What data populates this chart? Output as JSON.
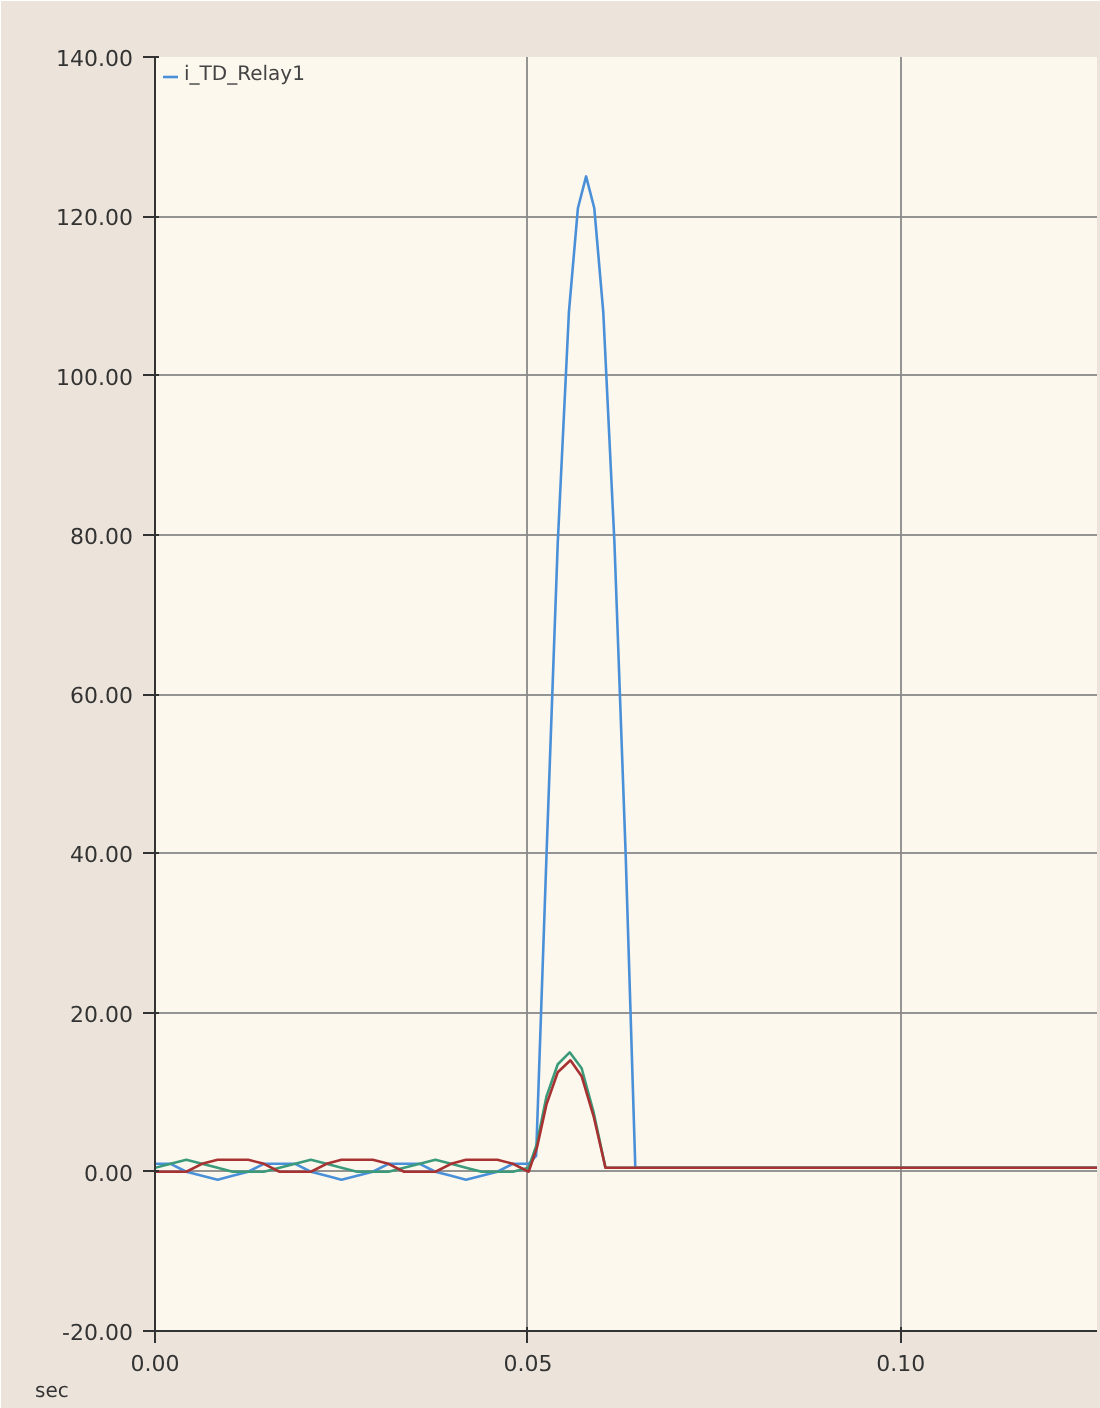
{
  "chart_data": {
    "type": "line",
    "xlabel": "sec",
    "xlim": [
      0,
      0.1263
    ],
    "xticks": [
      {
        "value": 0,
        "label": "0.00"
      },
      {
        "value": 0.05,
        "label": "0.05"
      },
      {
        "value": 0.1,
        "label": "0.10"
      }
    ],
    "ylim": [
      -20,
      140
    ],
    "yticks": [
      {
        "value": -20,
        "label": "-20.00"
      },
      {
        "value": 0,
        "label": "0.00"
      },
      {
        "value": 20,
        "label": "20.00"
      },
      {
        "value": 40,
        "label": "40.00"
      },
      {
        "value": 60,
        "label": "60.00"
      },
      {
        "value": 80,
        "label": "80.00"
      },
      {
        "value": 100,
        "label": "100.00"
      },
      {
        "value": 120,
        "label": "120.00"
      },
      {
        "value": 140,
        "label": "140.00"
      }
    ],
    "grid": true,
    "legend": "top left",
    "line_style": "solid",
    "marker": "none",
    "series": [
      {
        "name": "i_TD_Relay1",
        "color": "#4a90d9",
        "x": [
          0,
          0.0021,
          0.0042,
          0.0063,
          0.0084,
          0.0104,
          0.0125,
          0.0146,
          0.0167,
          0.0188,
          0.0209,
          0.023,
          0.025,
          0.0271,
          0.0292,
          0.0313,
          0.0334,
          0.0355,
          0.0376,
          0.0397,
          0.0417,
          0.0438,
          0.0459,
          0.048,
          0.0501,
          0.0511,
          0.0525,
          0.054,
          0.0555,
          0.0567,
          0.0578,
          0.0589,
          0.0601,
          0.0616,
          0.0631,
          0.0644,
          0.1263
        ],
        "values": [
          1,
          1,
          0,
          -0.5,
          -1,
          -0.5,
          0,
          1,
          1,
          1,
          0,
          -0.5,
          -1,
          -0.5,
          0,
          1,
          1,
          1,
          0,
          -0.5,
          -1,
          -0.5,
          0,
          1,
          1,
          2,
          40,
          79,
          108,
          121,
          125,
          121,
          108,
          79,
          40,
          0.5,
          0.5
        ]
      },
      {
        "color": "#3a9a7a",
        "x": [
          0,
          0.0021,
          0.0042,
          0.0063,
          0.0084,
          0.0104,
          0.0125,
          0.0146,
          0.0167,
          0.0188,
          0.0209,
          0.023,
          0.025,
          0.0271,
          0.0292,
          0.0313,
          0.0334,
          0.0355,
          0.0376,
          0.0397,
          0.0417,
          0.0438,
          0.0459,
          0.048,
          0.0501,
          0.0512,
          0.0525,
          0.054,
          0.0556,
          0.0572,
          0.0588,
          0.0604,
          0.1263
        ],
        "values": [
          0.5,
          1,
          1.5,
          1,
          0.5,
          0,
          0,
          0,
          0.5,
          1,
          1.5,
          1,
          0.5,
          0,
          0,
          0,
          0.5,
          1,
          1.5,
          1,
          0.5,
          0,
          0,
          0,
          0.5,
          3.5,
          9.5,
          13.5,
          15,
          13,
          7.5,
          0.5,
          0.5
        ]
      },
      {
        "color": "#a83232",
        "x": [
          0,
          0.0021,
          0.0042,
          0.0063,
          0.0084,
          0.0104,
          0.0125,
          0.0146,
          0.0167,
          0.0188,
          0.0209,
          0.023,
          0.025,
          0.0271,
          0.0292,
          0.0313,
          0.0334,
          0.0355,
          0.0376,
          0.0397,
          0.0417,
          0.0438,
          0.0459,
          0.048,
          0.0501,
          0.0512,
          0.0525,
          0.054,
          0.0557,
          0.0572,
          0.0588,
          0.0604,
          0.1263
        ],
        "values": [
          0,
          0,
          0,
          1,
          1.5,
          1.5,
          1.5,
          1,
          0,
          0,
          0,
          1,
          1.5,
          1.5,
          1.5,
          1,
          0,
          0,
          0,
          1,
          1.5,
          1.5,
          1.5,
          1,
          0,
          3,
          8.5,
          12.5,
          14,
          12,
          7,
          0.5,
          0.5
        ]
      }
    ]
  }
}
